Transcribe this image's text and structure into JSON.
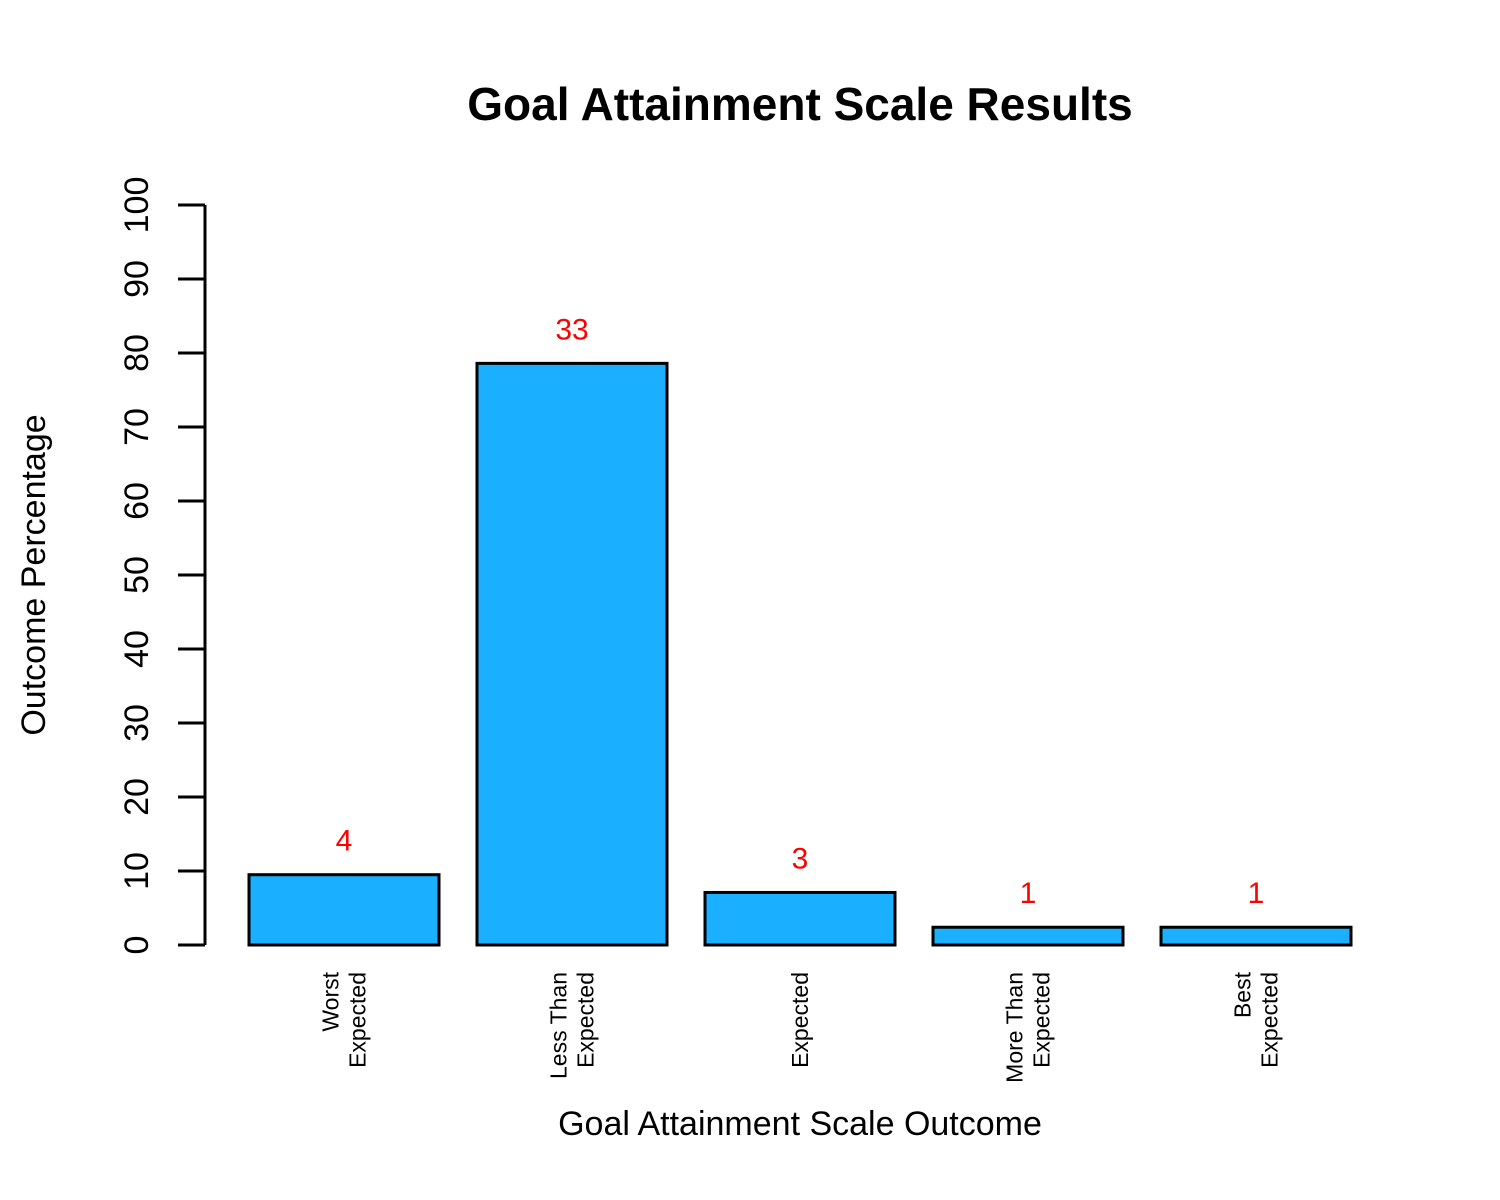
{
  "chart_data": {
    "type": "bar",
    "title": "Goal Attainment Scale Results",
    "xlabel": "Goal Attainment Scale Outcome",
    "ylabel": "Outcome Percentage",
    "ylim": [
      0,
      100
    ],
    "yticks": [
      0,
      10,
      20,
      30,
      40,
      50,
      60,
      70,
      80,
      90,
      100
    ],
    "categories": [
      [
        "Worst",
        "Expected"
      ],
      [
        "Less Than",
        "Expected"
      ],
      [
        "Expected"
      ],
      [
        "More Than",
        "Expected"
      ],
      [
        "Best",
        "Expected"
      ]
    ],
    "values": [
      9.5,
      78.6,
      7.1,
      2.4,
      2.4
    ],
    "counts": [
      "4",
      "33",
      "3",
      "1",
      "1"
    ],
    "grid": false,
    "colors": {
      "bar_fill": "#1AAFFF",
      "bar_stroke": "#000000",
      "count_label": "#FF0000",
      "text": "#000000"
    }
  }
}
